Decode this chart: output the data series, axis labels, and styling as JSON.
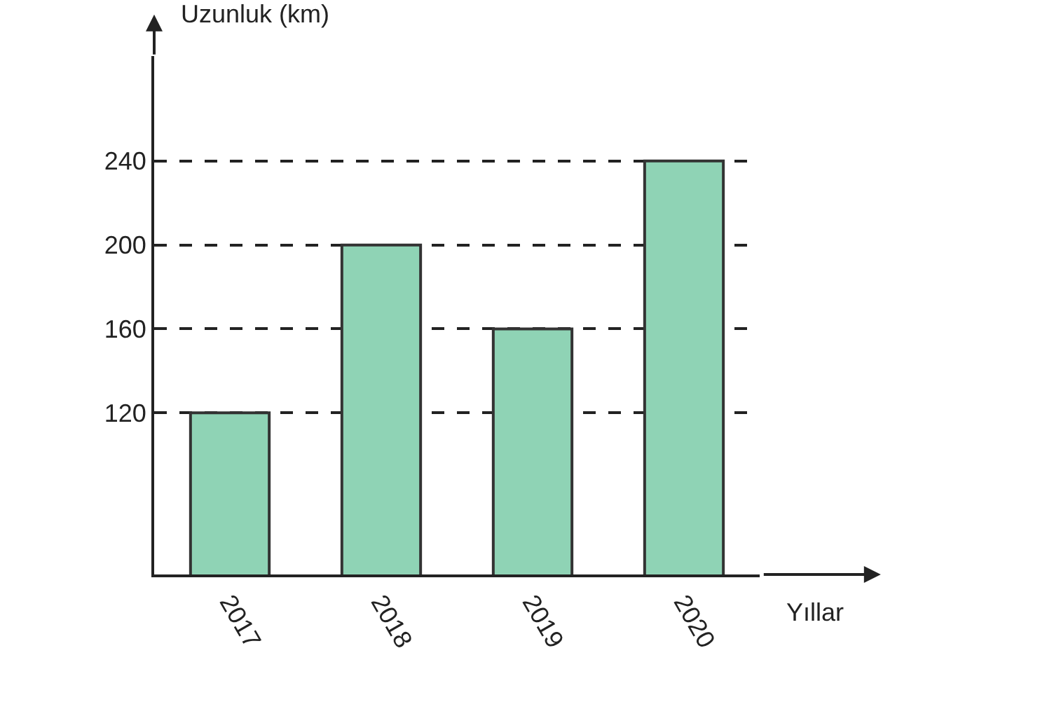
{
  "chart_data": {
    "type": "bar",
    "xlabel": "Yıllar",
    "ylabel": "Uzunluk (km)",
    "categories": [
      "2017",
      "2018",
      "2019",
      "2020"
    ],
    "values": [
      120,
      200,
      160,
      240
    ],
    "color": "#8fd3b5",
    "ylim": [
      43,
      290
    ],
    "yticks": [
      120,
      160,
      200,
      240
    ],
    "grid": "y"
  }
}
